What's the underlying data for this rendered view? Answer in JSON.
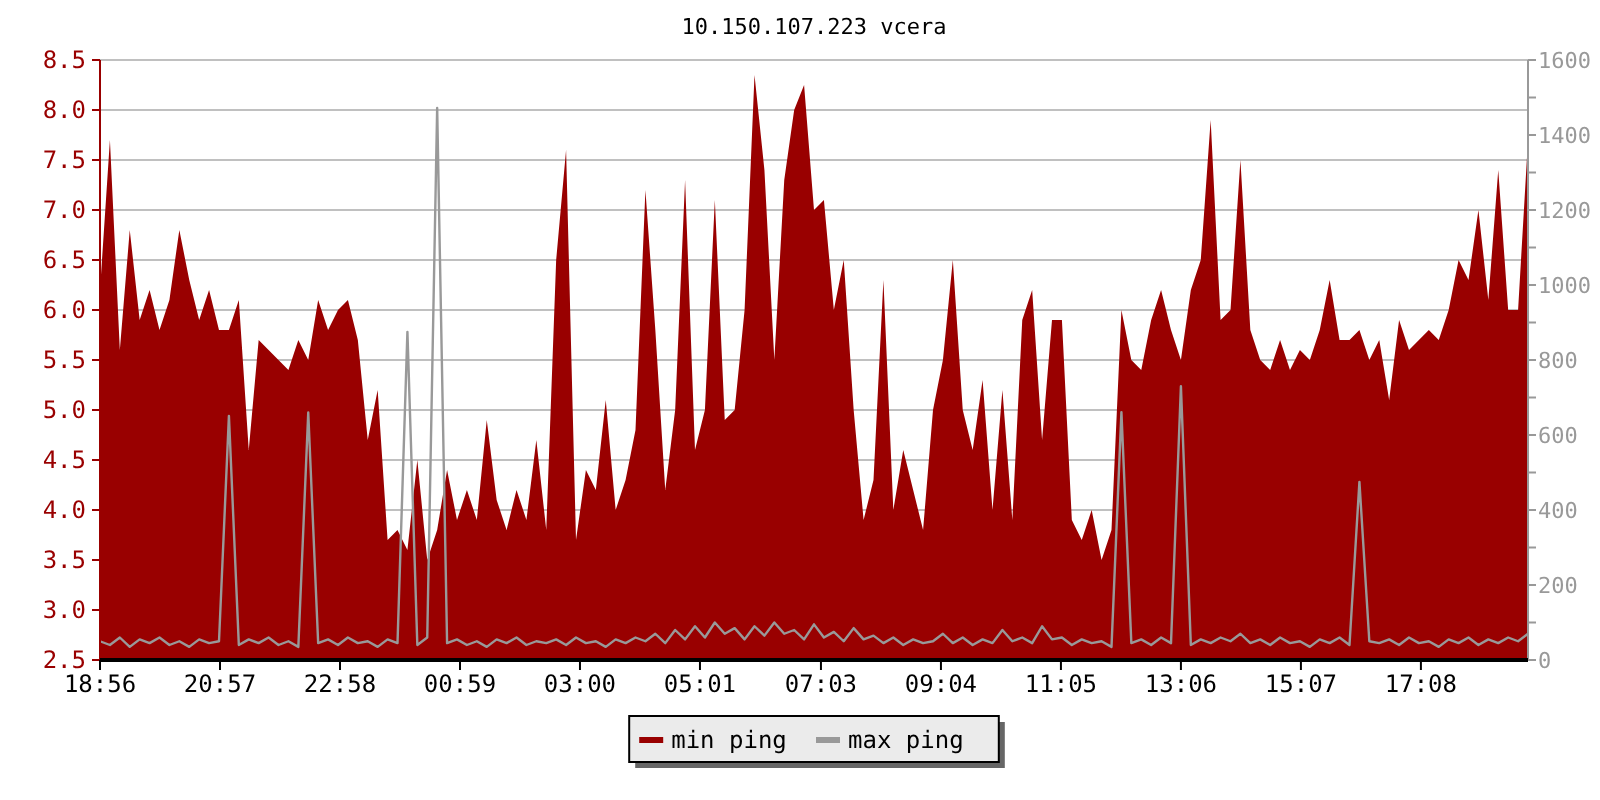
{
  "chart_data": {
    "type": "area",
    "title": "10.150.107.223 vcera",
    "x": [
      "2000-01-01T18:56",
      "2000-01-01T19:06",
      "2000-01-01T19:16",
      "2000-01-01T19:26",
      "2000-01-01T19:36",
      "2000-01-01T19:46",
      "2000-01-01T19:56",
      "2000-01-01T20:06",
      "2000-01-01T20:16",
      "2000-01-01T20:26",
      "2000-01-01T20:36",
      "2000-01-01T20:46",
      "2000-01-01T20:56",
      "2000-01-01T21:06",
      "2000-01-01T21:16",
      "2000-01-01T21:26",
      "2000-01-01T21:36",
      "2000-01-01T21:46",
      "2000-01-01T21:56",
      "2000-01-01T22:06",
      "2000-01-01T22:16",
      "2000-01-01T22:26",
      "2000-01-01T22:36",
      "2000-01-01T22:46",
      "2000-01-01T22:56",
      "2000-01-01T23:06",
      "2000-01-01T23:16",
      "2000-01-01T23:26",
      "2000-01-01T23:36",
      "2000-01-01T23:46",
      "2000-01-01T23:56",
      "2000-01-02T00:06",
      "2000-01-02T00:16",
      "2000-01-02T00:26",
      "2000-01-02T00:36",
      "2000-01-02T00:46",
      "2000-01-02T00:56",
      "2000-01-02T01:06",
      "2000-01-02T01:16",
      "2000-01-02T01:26",
      "2000-01-02T01:36",
      "2000-01-02T01:46",
      "2000-01-02T01:56",
      "2000-01-02T02:06",
      "2000-01-02T02:16",
      "2000-01-02T02:26",
      "2000-01-02T02:36",
      "2000-01-02T02:46",
      "2000-01-02T02:56",
      "2000-01-02T03:06",
      "2000-01-02T03:16",
      "2000-01-02T03:26",
      "2000-01-02T03:36",
      "2000-01-02T03:46",
      "2000-01-02T03:56",
      "2000-01-02T04:06",
      "2000-01-02T04:16",
      "2000-01-02T04:26",
      "2000-01-02T04:36",
      "2000-01-02T04:46",
      "2000-01-02T04:56",
      "2000-01-02T05:06",
      "2000-01-02T05:16",
      "2000-01-02T05:26",
      "2000-01-02T05:36",
      "2000-01-02T05:46",
      "2000-01-02T05:56",
      "2000-01-02T06:06",
      "2000-01-02T06:16",
      "2000-01-02T06:26",
      "2000-01-02T06:36",
      "2000-01-02T06:46",
      "2000-01-02T06:56",
      "2000-01-02T07:06",
      "2000-01-02T07:16",
      "2000-01-02T07:26",
      "2000-01-02T07:36",
      "2000-01-02T07:46",
      "2000-01-02T07:56",
      "2000-01-02T08:06",
      "2000-01-02T08:16",
      "2000-01-02T08:26",
      "2000-01-02T08:36",
      "2000-01-02T08:46",
      "2000-01-02T08:56",
      "2000-01-02T09:06",
      "2000-01-02T09:16",
      "2000-01-02T09:26",
      "2000-01-02T09:36",
      "2000-01-02T09:46",
      "2000-01-02T09:56",
      "2000-01-02T10:06",
      "2000-01-02T10:16",
      "2000-01-02T10:26",
      "2000-01-02T10:36",
      "2000-01-02T10:46",
      "2000-01-02T10:56",
      "2000-01-02T11:06",
      "2000-01-02T11:16",
      "2000-01-02T11:26",
      "2000-01-02T11:36",
      "2000-01-02T11:46",
      "2000-01-02T11:56",
      "2000-01-02T12:06",
      "2000-01-02T12:16",
      "2000-01-02T12:26",
      "2000-01-02T12:36",
      "2000-01-02T12:46",
      "2000-01-02T12:56",
      "2000-01-02T13:06",
      "2000-01-02T13:16",
      "2000-01-02T13:26",
      "2000-01-02T13:36",
      "2000-01-02T13:46",
      "2000-01-02T13:56",
      "2000-01-02T14:06",
      "2000-01-02T14:16",
      "2000-01-02T14:26",
      "2000-01-02T14:36",
      "2000-01-02T14:46",
      "2000-01-02T14:56",
      "2000-01-02T15:06",
      "2000-01-02T15:16",
      "2000-01-02T15:26",
      "2000-01-02T15:36",
      "2000-01-02T15:46",
      "2000-01-02T15:56",
      "2000-01-02T16:06",
      "2000-01-02T16:16",
      "2000-01-02T16:26",
      "2000-01-02T16:36",
      "2000-01-02T16:46",
      "2000-01-02T16:56",
      "2000-01-02T17:06",
      "2000-01-02T17:16",
      "2000-01-02T17:26",
      "2000-01-02T17:36",
      "2000-01-02T17:46",
      "2000-01-02T17:56",
      "2000-01-02T18:06",
      "2000-01-02T18:16",
      "2000-01-02T18:26",
      "2000-01-02T18:36",
      "2000-01-02T18:46",
      "2000-01-02T18:56"
    ],
    "xlim": [
      "2000-01-01T18:56",
      "2000-01-02T18:56"
    ],
    "xticks": [
      {
        "value": "2000-01-01T18:56",
        "label": "18:56"
      },
      {
        "value": "2000-01-01T20:57",
        "label": "20:57"
      },
      {
        "value": "2000-01-01T22:58",
        "label": "22:58"
      },
      {
        "value": "2000-01-02T00:59",
        "label": "00:59"
      },
      {
        "value": "2000-01-02T03:00",
        "label": "03:00"
      },
      {
        "value": "2000-01-02T05:01",
        "label": "05:01"
      },
      {
        "value": "2000-01-02T07:03",
        "label": "07:03"
      },
      {
        "value": "2000-01-02T09:04",
        "label": "09:04"
      },
      {
        "value": "2000-01-02T11:05",
        "label": "11:05"
      },
      {
        "value": "2000-01-02T13:06",
        "label": "13:06"
      },
      {
        "value": "2000-01-02T15:07",
        "label": "15:07"
      },
      {
        "value": "2000-01-02T17:08",
        "label": "17:08"
      }
    ],
    "ylim": [
      2.5,
      8.5
    ],
    "yticks": [
      {
        "value": 2.5,
        "label": "2.5"
      },
      {
        "value": 3,
        "label": "3.0"
      },
      {
        "value": 3.5,
        "label": "3.5"
      },
      {
        "value": 4,
        "label": "4.0"
      },
      {
        "value": 4.5,
        "label": "4.5"
      },
      {
        "value": 5,
        "label": "5.0"
      },
      {
        "value": 5.5,
        "label": "5.5"
      },
      {
        "value": 6,
        "label": "6.0"
      },
      {
        "value": 6.5,
        "label": "6.5"
      },
      {
        "value": 7,
        "label": "7.0"
      },
      {
        "value": 7.5,
        "label": "7.5"
      },
      {
        "value": 8,
        "label": "8.0"
      },
      {
        "value": 8.5,
        "label": "8.5"
      }
    ],
    "y2lim": [
      0,
      1600
    ],
    "y2ticks": [
      0,
      {
        "value": 100,
        "label": null
      },
      200,
      {
        "value": 300,
        "label": null
      },
      400,
      {
        "value": 500,
        "label": null
      },
      600,
      {
        "value": 700,
        "label": null
      },
      800,
      {
        "value": 900,
        "label": null
      },
      1000,
      {
        "value": 1100,
        "label": null
      },
      1200,
      {
        "value": 1300,
        "label": null
      },
      1400,
      {
        "value": 1500,
        "label": null
      },
      1600
    ],
    "grid": "y",
    "legend": "bottom",
    "series": [
      {
        "name": "min ping",
        "color": "#990000",
        "values": [
          6.2,
          7.7,
          5.6,
          6.8,
          5.9,
          6.2,
          5.8,
          6.1,
          6.8,
          6.3,
          5.9,
          6.2,
          5.8,
          5.8,
          6.1,
          4.6,
          5.7,
          5.6,
          5.5,
          5.4,
          5.7,
          5.5,
          6.1,
          5.8,
          6.0,
          6.1,
          5.7,
          4.7,
          5.2,
          3.7,
          3.8,
          3.6,
          4.5,
          3.5,
          3.8,
          4.4,
          3.9,
          4.2,
          3.9,
          4.9,
          4.1,
          3.8,
          4.2,
          3.9,
          4.7,
          3.8,
          6.5,
          7.6,
          3.7,
          4.4,
          4.2,
          5.1,
          4.0,
          4.3,
          4.8,
          7.2,
          5.8,
          4.2,
          5.0,
          7.3,
          4.6,
          5.0,
          7.1,
          4.9,
          5.0,
          6.0,
          8.35,
          7.4,
          5.5,
          7.3,
          8.0,
          8.25,
          7.0,
          7.1,
          6.0,
          6.5,
          5.0,
          3.9,
          4.3,
          6.3,
          4.0,
          4.6,
          4.2,
          3.8,
          5.0,
          5.5,
          6.5,
          5.0,
          4.6,
          5.3,
          4.0,
          5.2,
          3.9,
          5.9,
          6.2,
          4.7,
          5.9,
          5.9,
          3.9,
          3.7,
          4.0,
          3.5,
          3.8,
          6.0,
          5.5,
          5.4,
          5.9,
          6.2,
          5.8,
          5.5,
          6.2,
          6.5,
          7.9,
          5.9,
          6.0,
          7.5,
          5.8,
          5.5,
          5.4,
          5.7,
          5.4,
          5.6,
          5.5,
          5.8,
          6.3,
          5.7,
          5.7,
          5.8,
          5.5,
          5.7,
          5.1,
          5.9,
          5.6,
          5.7,
          5.8,
          5.7,
          6.0,
          6.5,
          6.3,
          7.0,
          6.1,
          7.4,
          6.0,
          6.0,
          7.7
        ]
      },
      {
        "name": "max ping",
        "type": "line",
        "axis": "y2",
        "color": "#999999",
        "values": [
          50,
          40,
          60,
          35,
          55,
          45,
          60,
          40,
          50,
          35,
          55,
          45,
          50,
          651,
          40,
          55,
          45,
          60,
          40,
          50,
          35,
          660,
          45,
          55,
          40,
          60,
          45,
          50,
          35,
          55,
          45,
          875,
          40,
          60,
          1472,
          45,
          55,
          40,
          50,
          35,
          55,
          45,
          60,
          40,
          50,
          45,
          55,
          40,
          60,
          45,
          50,
          35,
          55,
          45,
          60,
          50,
          70,
          45,
          80,
          55,
          90,
          60,
          100,
          70,
          85,
          55,
          90,
          65,
          100,
          70,
          80,
          55,
          95,
          60,
          75,
          50,
          85,
          55,
          65,
          45,
          60,
          40,
          55,
          45,
          50,
          70,
          45,
          60,
          40,
          55,
          45,
          80,
          50,
          60,
          45,
          90,
          55,
          60,
          40,
          55,
          45,
          50,
          35,
          661,
          45,
          55,
          40,
          60,
          45,
          730,
          40,
          55,
          45,
          60,
          50,
          70,
          45,
          55,
          40,
          60,
          45,
          50,
          35,
          55,
          45,
          60,
          40,
          475,
          50,
          45,
          55,
          40,
          60,
          45,
          50,
          35,
          55,
          45,
          60,
          40,
          55,
          45,
          60,
          50,
          70
        ]
      }
    ]
  }
}
